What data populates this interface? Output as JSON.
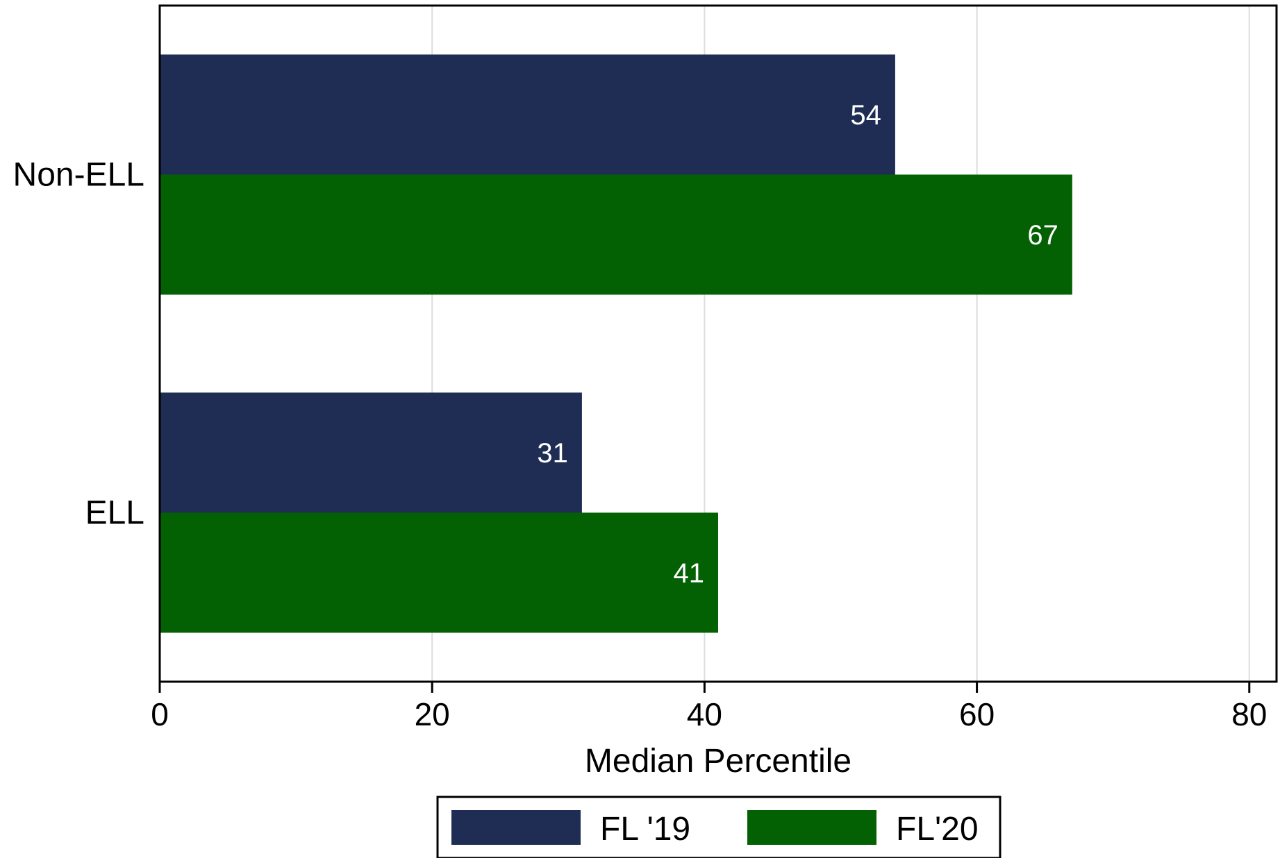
{
  "chart_data": {
    "type": "bar",
    "orientation": "horizontal",
    "categories": [
      "Non-ELL",
      "ELL"
    ],
    "series": [
      {
        "name": "FL '19",
        "values": [
          54,
          31
        ],
        "color": "#1f2d54"
      },
      {
        "name": "FL'20",
        "values": [
          67,
          41
        ],
        "color": "#036003"
      }
    ],
    "xlabel": "Median Percentile",
    "ylabel": "",
    "xlim": [
      0,
      82
    ],
    "xticks": [
      0,
      20,
      40,
      60,
      80
    ],
    "grid": true,
    "legend_position": "bottom",
    "data_labels": true
  }
}
